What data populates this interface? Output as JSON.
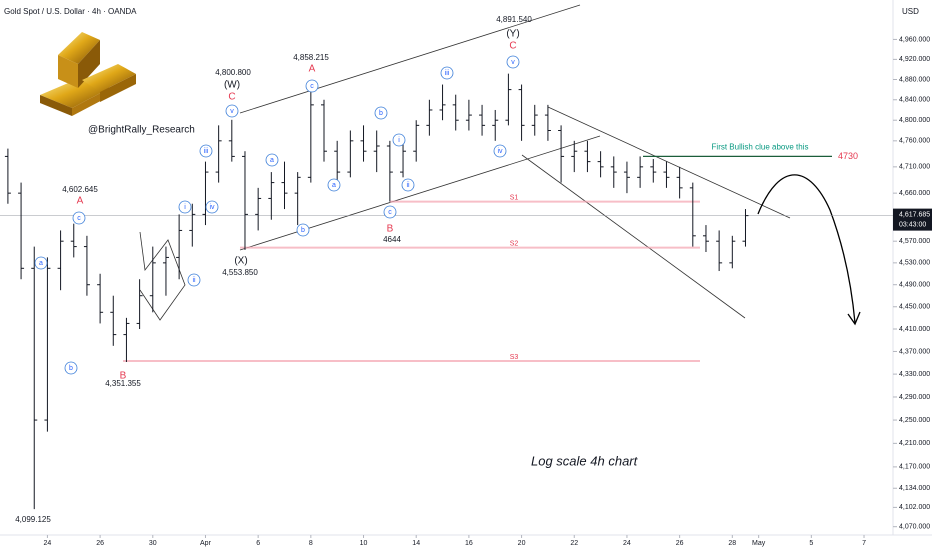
{
  "header": {
    "title": "Gold Spot / U.S. Dollar · 4h · OANDA",
    "currency": "USD",
    "watermark": "@BrightRally_Research",
    "note": "Log scale 4h chart"
  },
  "chart_data": {
    "type": "ohlc",
    "log_scale": true,
    "color": "#131722",
    "x": [
      -1.5,
      -1,
      -0.5,
      0,
      0.5,
      1,
      1.5,
      2,
      2.5,
      3,
      3.5,
      4,
      4.5,
      5,
      5.5,
      6,
      6.5,
      7,
      7.5,
      8,
      8.5,
      9,
      9.5,
      10,
      10.5,
      11,
      11.5,
      12,
      12.5,
      13,
      13.5,
      14,
      14.5,
      15,
      15.5,
      16,
      16.5,
      17,
      17.5,
      18,
      18.5,
      19,
      19.5,
      20,
      20.5,
      21,
      21.5,
      22,
      22.5,
      23,
      23.5,
      24,
      24.5,
      25,
      25.5,
      26,
      26.5
    ],
    "open": [
      4730,
      4660,
      4520,
      4250,
      4520,
      4570,
      4560,
      4490,
      4440,
      4400,
      4420,
      4470,
      4530,
      4540,
      4590,
      4620,
      4700,
      4760,
      4730,
      4620,
      4650,
      4680,
      4660,
      4690,
      4830,
      4740,
      4700,
      4760,
      4740,
      4750,
      4700,
      4740,
      4790,
      4820,
      4830,
      4800,
      4810,
      4790,
      4800,
      4860,
      4790,
      4810,
      4780,
      4730,
      4740,
      4720,
      4710,
      4700,
      4690,
      4710,
      4700,
      4690,
      4670,
      4580,
      4570,
      4530,
      4570
    ],
    "high": [
      4745,
      4680,
      4560,
      4540,
      4590,
      4602.645,
      4580,
      4510,
      4470,
      4430,
      4500,
      4560,
      4560,
      4620,
      4640,
      4720,
      4790,
      4800.8,
      4740,
      4670,
      4700,
      4720,
      4700,
      4858.215,
      4840,
      4760,
      4780,
      4790,
      4780,
      4760,
      4760,
      4800,
      4840,
      4870,
      4850,
      4840,
      4830,
      4820,
      4891.54,
      4870,
      4830,
      4830,
      4790,
      4760,
      4760,
      4740,
      4730,
      4720,
      4730,
      4725,
      4720,
      4710,
      4680,
      4600,
      4590,
      4580,
      4630
    ],
    "low": [
      4640,
      4500,
      4099.125,
      4230,
      4480,
      4540,
      4470,
      4420,
      4380,
      4351.355,
      4410,
      4440,
      4470,
      4500,
      4560,
      4600,
      4680,
      4720,
      4553.85,
      4590,
      4610,
      4630,
      4600,
      4680,
      4720,
      4670,
      4690,
      4720,
      4700,
      4644,
      4690,
      4720,
      4770,
      4800,
      4780,
      4780,
      4770,
      4760,
      4790,
      4760,
      4770,
      4760,
      4680,
      4700,
      4700,
      4690,
      4670,
      4660,
      4670,
      4680,
      4670,
      4650,
      4560,
      4550,
      4515,
      4520,
      4560
    ],
    "close": [
      4660,
      4520,
      4250,
      4520,
      4570,
      4560,
      4490,
      4440,
      4400,
      4420,
      4470,
      4530,
      4540,
      4590,
      4620,
      4700,
      4760,
      4730,
      4620,
      4650,
      4680,
      4660,
      4690,
      4830,
      4740,
      4700,
      4760,
      4740,
      4750,
      4700,
      4740,
      4790,
      4820,
      4830,
      4800,
      4810,
      4790,
      4800,
      4860,
      4790,
      4810,
      4780,
      4730,
      4740,
      4720,
      4710,
      4700,
      4690,
      4710,
      4700,
      4690,
      4670,
      4580,
      4570,
      4530,
      4570,
      4617.685
    ],
    "last_price_label": "4,617.685",
    "countdown": "03:43:00",
    "xlim": [
      -1.8,
      32.1
    ],
    "xticks": [
      {
        "value": 0,
        "label": "24"
      },
      {
        "value": 2,
        "label": "26"
      },
      {
        "value": 4,
        "label": "30"
      },
      {
        "value": 6,
        "label": "Apr"
      },
      {
        "value": 8,
        "label": "6"
      },
      {
        "value": 10,
        "label": "8"
      },
      {
        "value": 12,
        "label": "10"
      },
      {
        "value": 14,
        "label": "14"
      },
      {
        "value": 16,
        "label": "16"
      },
      {
        "value": 18,
        "label": "20"
      },
      {
        "value": 20,
        "label": "22"
      },
      {
        "value": 22,
        "label": "24"
      },
      {
        "value": 24,
        "label": "26"
      },
      {
        "value": 26,
        "label": "28"
      },
      {
        "value": 27,
        "label": "May"
      },
      {
        "value": 29,
        "label": "5"
      },
      {
        "value": 31,
        "label": "7"
      }
    ],
    "ylim": [
      4053,
      5040
    ],
    "yticks": [
      {
        "value": 4960,
        "label": "4,960.000"
      },
      {
        "value": 4920,
        "label": "4,920.000"
      },
      {
        "value": 4880,
        "label": "4,880.000"
      },
      {
        "value": 4840,
        "label": "4,840.000"
      },
      {
        "value": 4800,
        "label": "4,800.000"
      },
      {
        "value": 4760,
        "label": "4,760.000"
      },
      {
        "value": 4710,
        "label": "4,710.000"
      },
      {
        "value": 4660,
        "label": "4,660.000"
      },
      {
        "value": 4570,
        "label": "4,570.000"
      },
      {
        "value": 4530,
        "label": "4,530.000"
      },
      {
        "value": 4490,
        "label": "4,490.000"
      },
      {
        "value": 4450,
        "label": "4,450.000"
      },
      {
        "value": 4410,
        "label": "4,410.000"
      },
      {
        "value": 4370,
        "label": "4,370.000"
      },
      {
        "value": 4330,
        "label": "4,330.000"
      },
      {
        "value": 4290,
        "label": "4,290.000"
      },
      {
        "value": 4250,
        "label": "4,250.000"
      },
      {
        "value": 4210,
        "label": "4,210.000"
      },
      {
        "value": 4170,
        "label": "4,170.000"
      },
      {
        "value": 4134,
        "label": "4,134.000"
      },
      {
        "value": 4102,
        "label": "4,102.000"
      },
      {
        "value": 4070,
        "label": "4,070.000"
      }
    ],
    "levels": [
      {
        "label": "S1",
        "value": 4644
      },
      {
        "label": "S2",
        "value": 4558
      },
      {
        "label": "S3",
        "value": 4353
      }
    ],
    "bullish_level": {
      "value": 4730,
      "label": "4730",
      "text": "First Bullish clue above this"
    },
    "annotations": [
      "4,891.540",
      "(Y)",
      "C",
      "v",
      "4,858.215",
      "A",
      "c",
      "4,800.800",
      "(W)",
      "C",
      "v",
      "iii",
      "iv",
      "i",
      "ii",
      "b",
      "a",
      "c",
      "B",
      "4644",
      "a",
      "b",
      "(X)",
      "4,553.850",
      "4,602.645",
      "A",
      "c",
      "a",
      "b",
      "B",
      "4,351.355",
      "4,099.125",
      "i",
      "ii",
      "iii",
      "iv"
    ]
  }
}
